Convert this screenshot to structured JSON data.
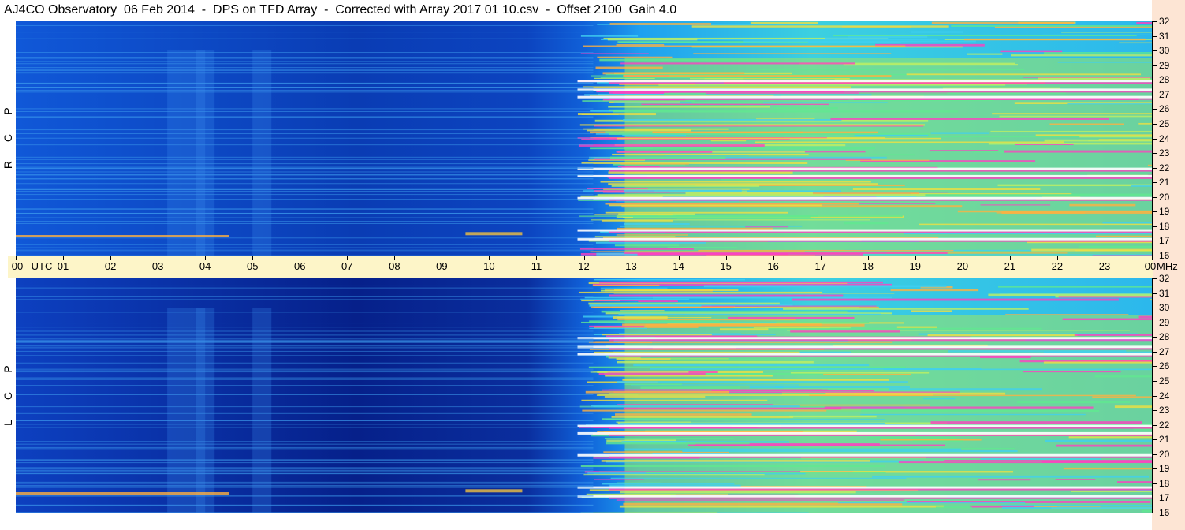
{
  "title": "AJ4CO Observatory  06 Feb 2014  -  DPS on TFD Array  -  Corrected with Array 2017 01 10.csv  -  Offset 2100  Gain 4.0",
  "colors": {
    "background": "#ffffff",
    "utc_bar": "#fdf5c8",
    "freq_strip": "#fde5d4",
    "spectrogram_low": "#0a2f9e",
    "spectrogram_mid": "#1ea0f0",
    "spectrogram_high": "#f0e040",
    "spectrogram_peak": "#ff40c0"
  },
  "panels": [
    {
      "name": "rcp",
      "polarization_letters": [
        "R",
        "C",
        "P"
      ]
    },
    {
      "name": "lcp",
      "polarization_letters": [
        "L",
        "C",
        "P"
      ]
    }
  ],
  "chart_data": {
    "type": "heatmap",
    "title": "AJ4CO Observatory  06 Feb 2014  -  DPS on TFD Array  -  Corrected with Array 2017 01 10.csv  -  Offset 2100  Gain 4.0",
    "x": {
      "labels": [
        "00",
        "UTC",
        "01",
        "02",
        "03",
        "04",
        "05",
        "06",
        "07",
        "08",
        "09",
        "10",
        "11",
        "12",
        "13",
        "14",
        "15",
        "16",
        "17",
        "18",
        "19",
        "20",
        "21",
        "22",
        "23",
        "00",
        "MHz"
      ],
      "hours": [
        0,
        1,
        2,
        3,
        4,
        5,
        6,
        7,
        8,
        9,
        10,
        11,
        12,
        13,
        14,
        15,
        16,
        17,
        18,
        19,
        20,
        21,
        22,
        23,
        24
      ],
      "range": [
        0,
        24
      ]
    },
    "y": {
      "ticks": [
        "32",
        "31",
        "30",
        "29",
        "28",
        "27",
        "26",
        "25",
        "24",
        "23",
        "22",
        "21",
        "20",
        "19",
        "18",
        "17",
        "16"
      ],
      "range": [
        16,
        32
      ]
    },
    "series": [
      {
        "name": "R C P",
        "activity_onset_hour": 12.2
      },
      {
        "name": "L C P",
        "activity_onset_hour": 12.2
      }
    ],
    "noise_bands_mhz": [
      17.2,
      17.8,
      20.0,
      21.5,
      22.0,
      26.9,
      27.4,
      28.0
    ]
  }
}
